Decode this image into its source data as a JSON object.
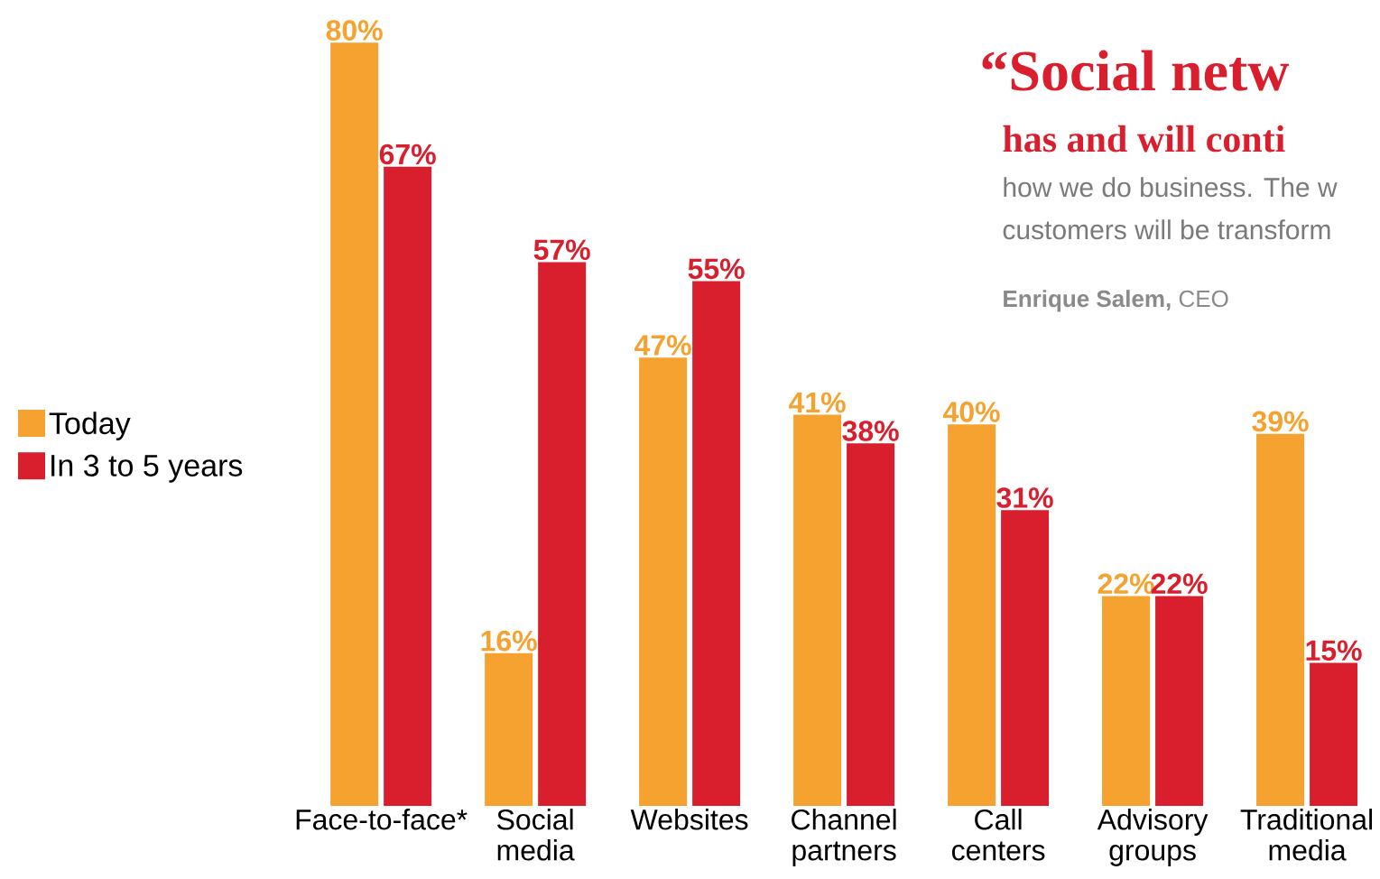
{
  "chart_data": {
    "type": "bar",
    "categories": [
      "Face-to-face*",
      "Social media",
      "Websites",
      "Channel partners",
      "Call centers",
      "Advisory groups",
      "Traditional media"
    ],
    "series": [
      {
        "name": "Today",
        "color": "#f5a230",
        "values": [
          80,
          16,
          47,
          41,
          40,
          22,
          39
        ],
        "value_labels": [
          "80%",
          "16%",
          "47%",
          "41%",
          "40%",
          "22%",
          "39%"
        ]
      },
      {
        "name": "In 3 to 5 years",
        "color": "#d91f2e",
        "values": [
          67,
          57,
          55,
          38,
          31,
          22,
          15
        ],
        "value_labels": [
          "67%",
          "57%",
          "55%",
          "38%",
          "31%",
          "22%",
          "15%"
        ]
      }
    ],
    "legend": "left",
    "annotations": [
      "“Social netw",
      "has and will conti",
      "how we do business. The w",
      "customers will be transform",
      "**Enrique Salem,** CEO"
    ]
  }
}
